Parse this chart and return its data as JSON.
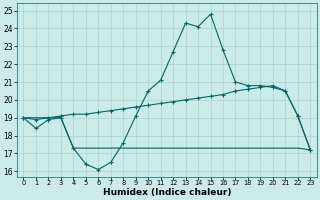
{
  "xlabel": "Humidex (Indice chaleur)",
  "x": [
    0,
    1,
    2,
    3,
    4,
    5,
    6,
    7,
    8,
    9,
    10,
    11,
    12,
    13,
    14,
    15,
    16,
    17,
    18,
    19,
    20,
    21,
    22,
    23
  ],
  "line1": [
    19.0,
    18.4,
    18.9,
    19.0,
    17.3,
    16.4,
    16.1,
    16.5,
    17.6,
    19.1,
    20.5,
    21.1,
    22.7,
    24.3,
    24.1,
    24.8,
    22.8,
    21.0,
    20.8,
    20.8,
    20.7,
    20.5,
    19.1,
    17.2
  ],
  "line2": [
    19.0,
    18.9,
    19.0,
    19.1,
    19.2,
    19.2,
    19.3,
    19.4,
    19.5,
    19.6,
    19.7,
    19.8,
    19.9,
    20.0,
    20.1,
    20.2,
    20.3,
    20.5,
    20.6,
    20.7,
    20.8,
    20.5,
    19.1,
    17.2
  ],
  "line3": [
    19.0,
    19.0,
    19.0,
    19.0,
    17.3,
    17.3,
    17.3,
    17.3,
    17.3,
    17.3,
    17.3,
    17.3,
    17.3,
    17.3,
    17.3,
    17.3,
    17.3,
    17.3,
    17.3,
    17.3,
    17.3,
    17.3,
    17.3,
    17.2
  ],
  "line_color": "#006666",
  "bg_color": "#cceae7",
  "grid_color": "#aad4d0",
  "yticks": [
    16,
    17,
    18,
    19,
    20,
    21,
    22,
    23,
    24,
    25
  ],
  "xlim": [
    -0.5,
    23.5
  ],
  "ylim": [
    15.7,
    25.4
  ]
}
